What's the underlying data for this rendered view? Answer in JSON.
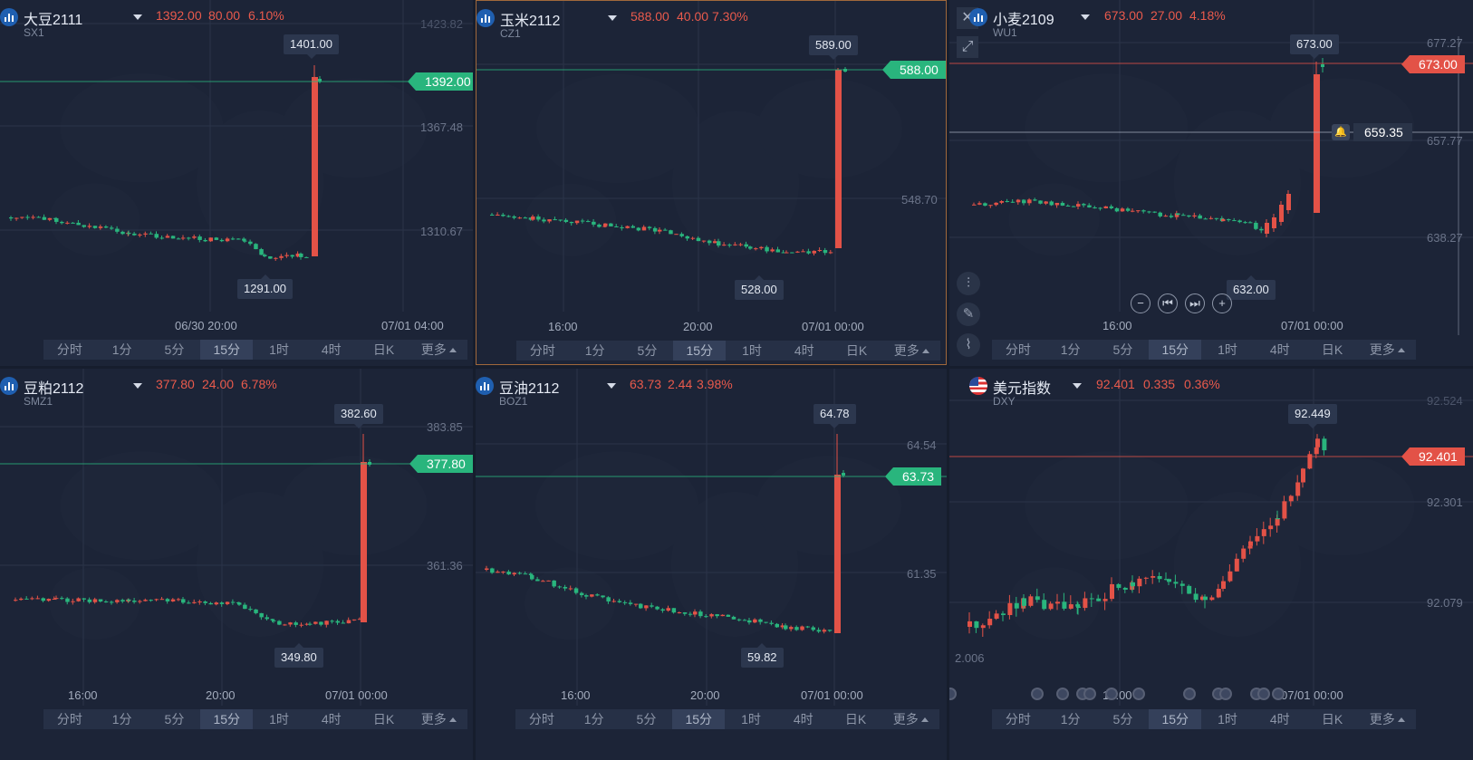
{
  "panels": [
    {
      "id": "soybean",
      "name": "大豆2111",
      "code": "SX1",
      "price": "1392.00",
      "change": "80.00",
      "pct": "6.10%",
      "current_tag": "1392.00",
      "high_label": "1401.00",
      "low_label": "1291.00",
      "y_labels": [
        "1423.82",
        "1367.48",
        "1310.67"
      ],
      "x_labels": [
        "06/30 20:00",
        "07/01 04:00"
      ],
      "tag_color": "green",
      "icon": "bar-chart-icon"
    },
    {
      "id": "corn",
      "name": "玉米2112",
      "code": "CZ1",
      "price": "588.00",
      "change": "40.00",
      "pct": "7.30%",
      "current_tag": "588.00",
      "high_label": "589.00",
      "low_label": "528.00",
      "y_labels": [
        "548.70"
      ],
      "x_labels": [
        "16:00",
        "20:00",
        "07/01 00:00"
      ],
      "tag_color": "green",
      "icon": "bar-chart-icon"
    },
    {
      "id": "wheat",
      "name": "小麦2109",
      "code": "WU1",
      "price": "673.00",
      "change": "27.00",
      "pct": "4.18%",
      "current_tag": "673.00",
      "high_label": "673.00",
      "low_label": "632.00",
      "y_labels": [
        "677.27",
        "657.77",
        "638.27"
      ],
      "x_labels": [
        "16:00",
        "07/01 00:00"
      ],
      "alert_price": "659.35",
      "tag_color": "red",
      "icon": "bar-chart-icon"
    },
    {
      "id": "soymeal",
      "name": "豆粕2112",
      "code": "SMZ1",
      "price": "377.80",
      "change": "24.00",
      "pct": "6.78%",
      "current_tag": "377.80",
      "high_label": "382.60",
      "low_label": "349.80",
      "y_labels": [
        "383.85",
        "361.36"
      ],
      "x_labels": [
        "16:00",
        "20:00",
        "07/01 00:00"
      ],
      "tag_color": "green",
      "icon": "bar-chart-icon"
    },
    {
      "id": "soyoil",
      "name": "豆油2112",
      "code": "BOZ1",
      "price": "63.73",
      "change": "2.44",
      "pct": "3.98%",
      "current_tag": "63.73",
      "high_label": "64.78",
      "low_label": "59.82",
      "y_labels": [
        "64.54",
        "61.35"
      ],
      "x_labels": [
        "16:00",
        "20:00",
        "07/01 00:00"
      ],
      "tag_color": "green",
      "icon": "bar-chart-icon"
    },
    {
      "id": "dxy",
      "name": "美元指数",
      "code": "DXY",
      "price": "92.401",
      "change": "0.335",
      "pct": "0.36%",
      "current_tag": "92.401",
      "high_label": "92.449",
      "low_label": "",
      "y_labels": [
        "92.524",
        "92.301",
        "92.079",
        "2.006"
      ],
      "x_labels": [
        "16:00",
        "07/01 00:00"
      ],
      "tag_color": "red",
      "icon": "us-flag-icon"
    }
  ],
  "timeframes": [
    "分时",
    "1分",
    "5分",
    "15分",
    "1时",
    "4时",
    "日K",
    "更多"
  ],
  "active_timeframe": "15分",
  "colors": {
    "up": "#e35247",
    "down": "#29b57d",
    "bg": "#1c2437",
    "active_border": "#a0683b"
  }
}
